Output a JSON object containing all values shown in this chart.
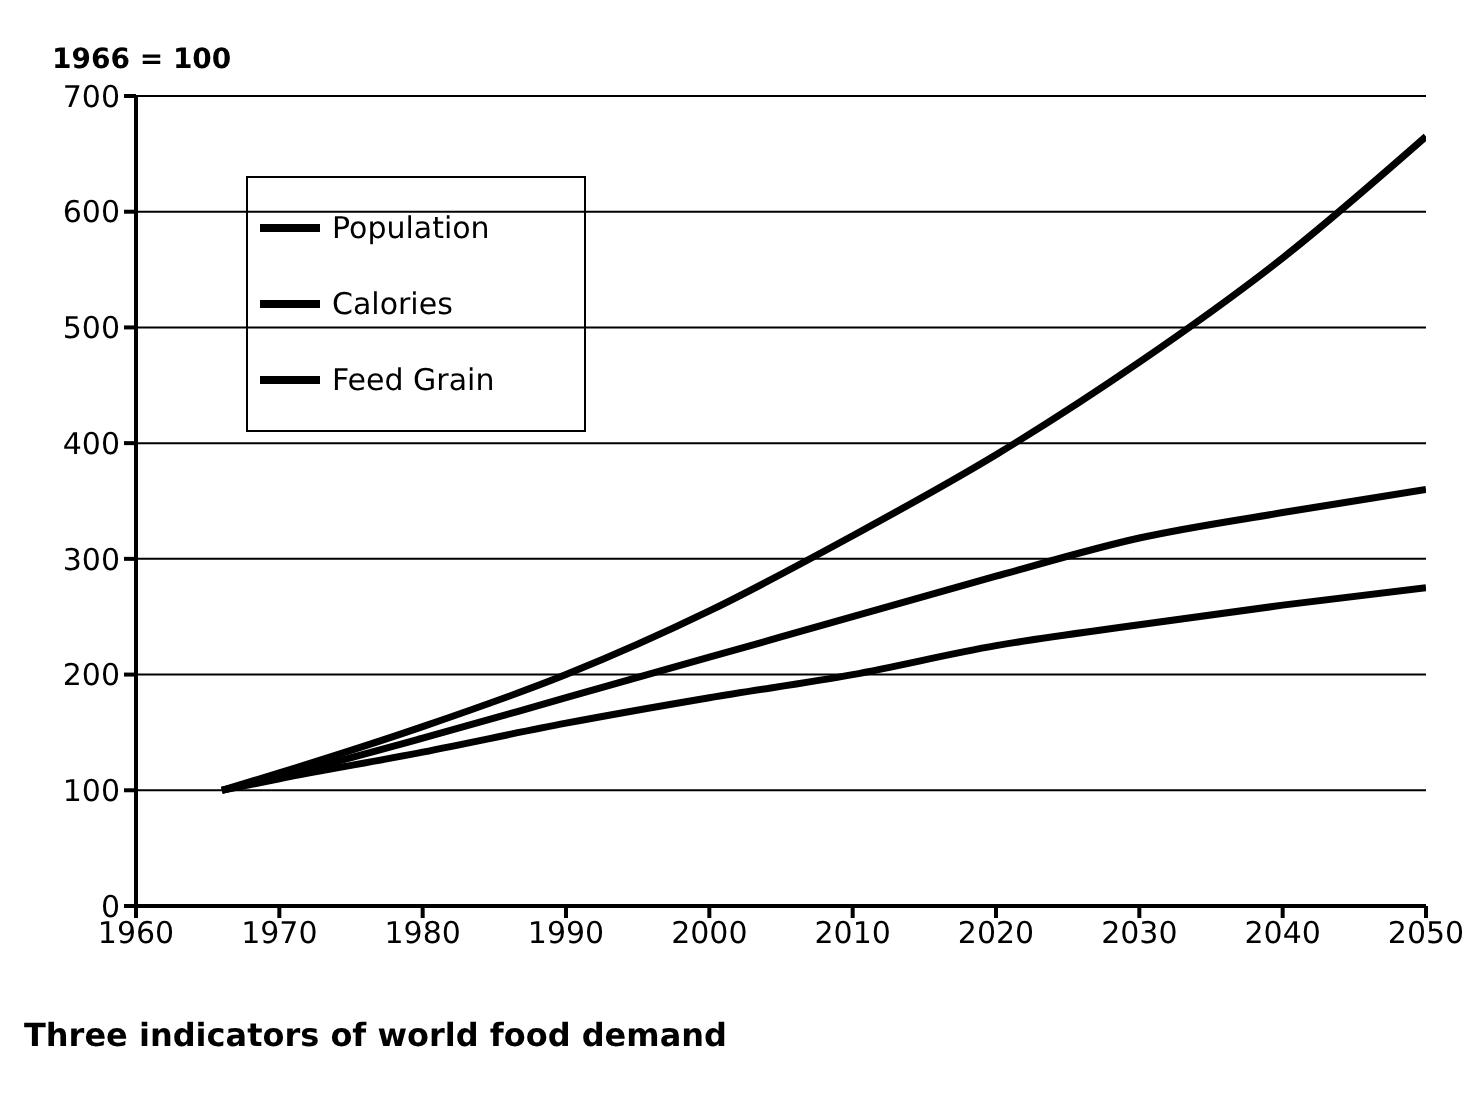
{
  "chart_data": {
    "type": "line",
    "ylabel": "1966 = 100",
    "annotations": [
      "Three indicators of world food demand"
    ],
    "x": [
      1966,
      1970,
      1980,
      1990,
      2000,
      2010,
      2020,
      2030,
      2040,
      2050
    ],
    "series": [
      {
        "name": "Population",
        "color": "#000000",
        "values": [
          100,
          110,
          133,
          158,
          180,
          200,
          225,
          243,
          260,
          275
        ]
      },
      {
        "name": "Calories",
        "color": "#000000",
        "values": [
          100,
          112,
          145,
          180,
          215,
          250,
          285,
          318,
          340,
          360
        ]
      },
      {
        "name": "Feed Grain",
        "color": "#000000",
        "values": [
          100,
          115,
          155,
          200,
          255,
          320,
          390,
          470,
          560,
          665
        ]
      }
    ],
    "xlim": [
      1960,
      2050
    ],
    "xticks": [
      1960,
      1970,
      1980,
      1990,
      2000,
      2010,
      2020,
      2030,
      2040,
      2050
    ],
    "ylim": [
      0,
      700
    ],
    "yticks": [
      0,
      100,
      200,
      300,
      400,
      500,
      600,
      700
    ],
    "grid": "y",
    "legend": "top left",
    "marker": "none",
    "line_style": "solid"
  }
}
